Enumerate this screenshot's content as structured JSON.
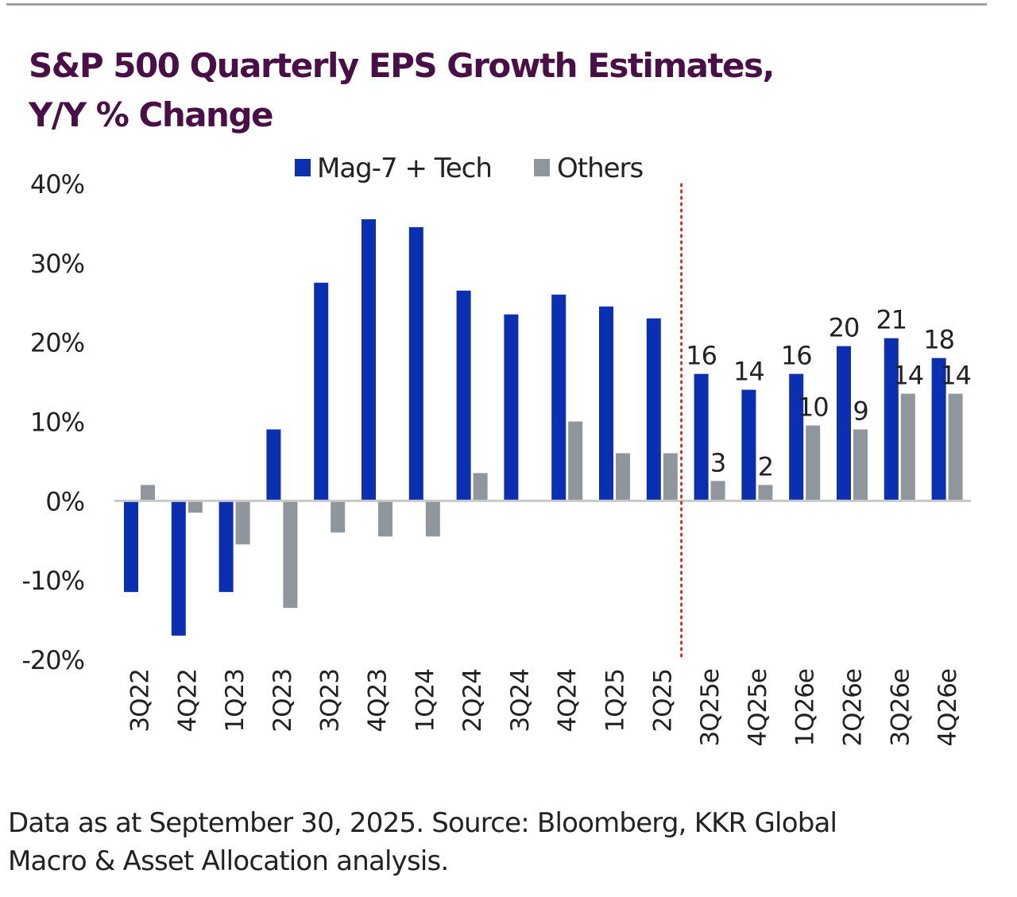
{
  "title_lines": [
    "S&P 500 Quarterly EPS Growth Estimates,",
    "Y/Y % Change"
  ],
  "footnote_lines": [
    "Data as at September 30, 2025. Source: Bloomberg, KKR Global",
    "Macro & Asset Allocation analysis."
  ],
  "colors": {
    "title": "#4b0f47",
    "series_mag7": "#0a2fb0",
    "series_others": "#8f969c",
    "divider": "#c0392b",
    "axis": "#c8c8c8",
    "text": "#222222"
  },
  "chart_data": {
    "type": "bar",
    "categories": [
      "3Q22",
      "4Q22",
      "1Q23",
      "2Q23",
      "3Q23",
      "4Q23",
      "1Q24",
      "2Q24",
      "3Q24",
      "4Q24",
      "1Q25",
      "2Q25",
      "3Q25e",
      "4Q25e",
      "1Q26e",
      "2Q26e",
      "3Q26e",
      "4Q26e"
    ],
    "series": [
      {
        "name": "Mag-7 + Tech",
        "color": "#0a2fb0",
        "values": [
          -11.5,
          -17,
          -11.5,
          9,
          27.5,
          35.5,
          34.5,
          26.5,
          23.5,
          26,
          24.5,
          23,
          16,
          14,
          16,
          19.5,
          20.5,
          18
        ],
        "labels": [
          "",
          "",
          "",
          "",
          "",
          "",
          "",
          "",
          "",
          "",
          "",
          "",
          "16",
          "14",
          "16",
          "20",
          "21",
          "18"
        ]
      },
      {
        "name": "Others",
        "color": "#8f969c",
        "values": [
          2,
          -1.5,
          -5.5,
          -13.5,
          -4,
          -4.5,
          -4.5,
          3.5,
          0,
          10,
          6,
          6,
          2.5,
          2,
          9.5,
          9,
          13.5,
          13.5
        ],
        "labels": [
          "",
          "",
          "",
          "",
          "",
          "",
          "",
          "",
          "",
          "",
          "",
          "",
          "3",
          "2",
          "10",
          "9",
          "14",
          "14"
        ]
      }
    ],
    "ylim": [
      -20,
      40
    ],
    "yticks": [
      -20,
      -10,
      0,
      10,
      20,
      30,
      40
    ],
    "ytick_labels": [
      "-20%",
      "-10%",
      "0%",
      "10%",
      "20%",
      "30%",
      "40%"
    ],
    "xlabel": "",
    "ylabel": "",
    "legend_position": "top-center",
    "estimate_divider_after": "2Q25",
    "grid": false
  }
}
